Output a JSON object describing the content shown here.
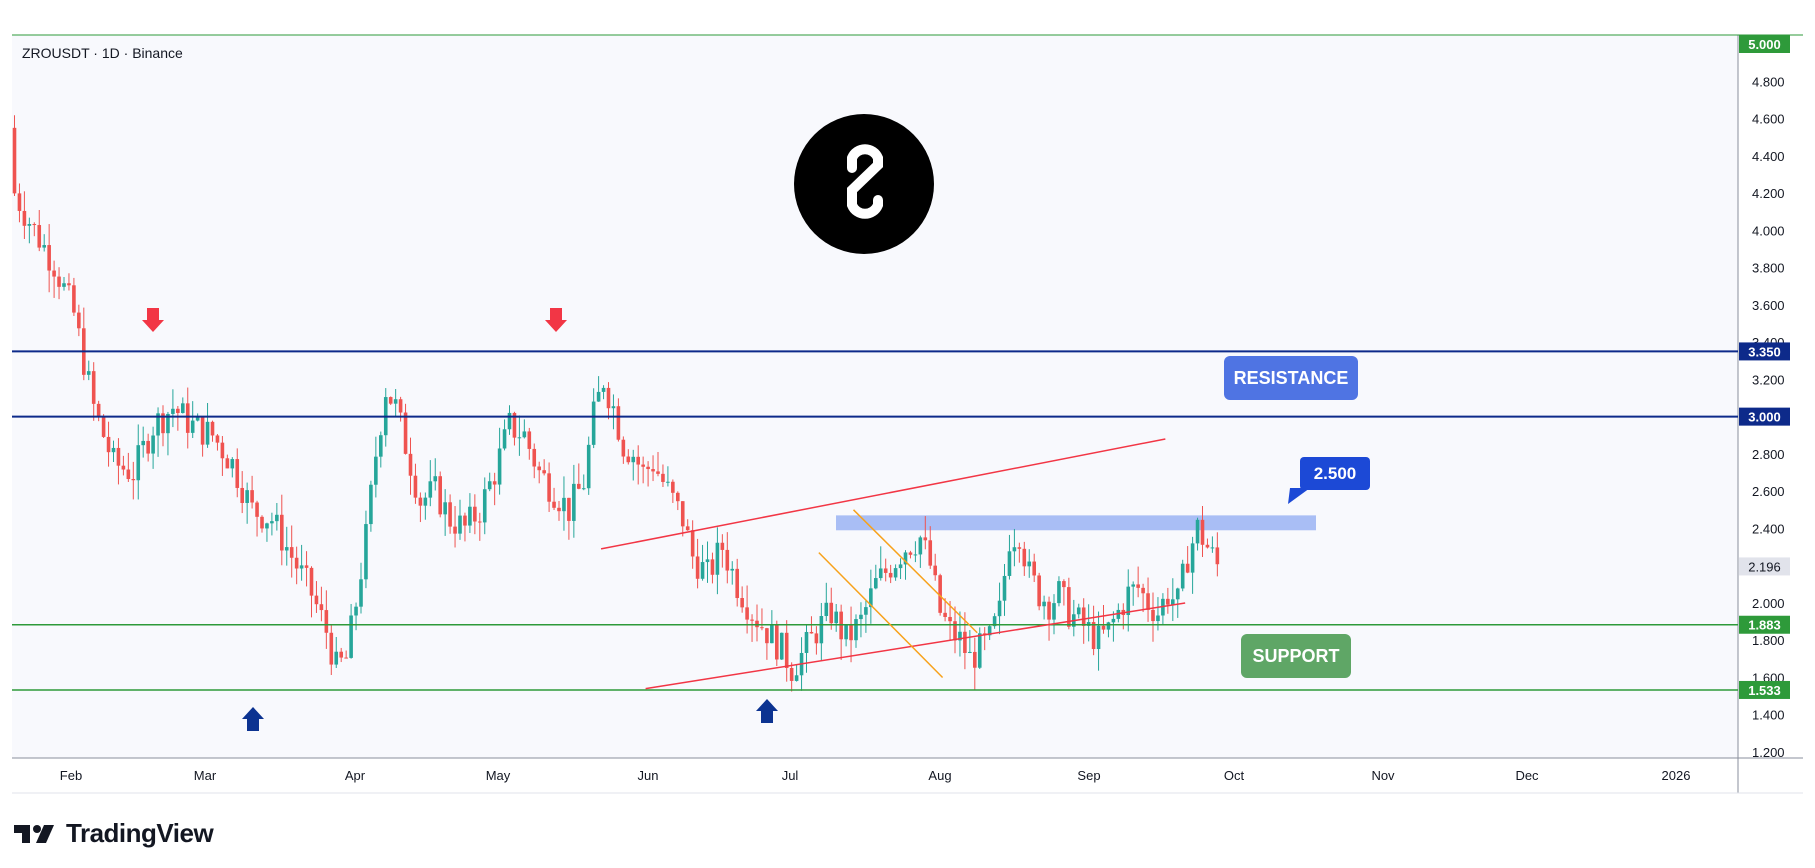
{
  "header": {
    "symbol_line": "ZROUSDT · 1D · Binance"
  },
  "brand": {
    "name": "TradingView",
    "logo_icon": "tradingview-logo-icon",
    "coin_icon": "layerzero-logo-icon"
  },
  "colors": {
    "up": "#26a69a",
    "down": "#ef5350",
    "resistance": "#0d2a8a",
    "support": "#2e9a3a",
    "channel": "#f23645",
    "wedge": "#f7a21b",
    "zone": "#8fa9f2",
    "resistance_box": "#4f74e3",
    "support_box": "#5fa666",
    "arrow_red": "#f23645",
    "arrow_blue": "#0c3391",
    "target_badge": "#1c49d6"
  },
  "chart_data": {
    "type": "candlestick",
    "title": "ZROUSDT · 1D · Binance",
    "ylim": [
      1.2,
      5.0
    ],
    "y_ticks": [
      "5.000",
      "4.800",
      "4.600",
      "4.400",
      "4.200",
      "4.000",
      "3.800",
      "3.600",
      "3.400",
      "3.200",
      "3.000",
      "2.800",
      "2.600",
      "2.400",
      "2.200",
      "2.000",
      "1.800",
      "1.600",
      "1.400",
      "1.200"
    ],
    "x_ticks": [
      "Feb",
      "Mar",
      "Apr",
      "May",
      "Jun",
      "Jul",
      "Aug",
      "Sep",
      "Oct",
      "Nov",
      "Dec",
      "2026"
    ],
    "price_badges": [
      {
        "value": "5.000",
        "style": "support"
      },
      {
        "value": "3.350",
        "style": "resistance"
      },
      {
        "value": "3.000",
        "style": "resistance"
      },
      {
        "value": "2.196",
        "style": "current"
      },
      {
        "value": "1.883",
        "style": "support"
      },
      {
        "value": "1.533",
        "style": "support"
      }
    ],
    "levels": {
      "resistance": [
        3.35,
        3.0
      ],
      "support": [
        1.883,
        1.533
      ]
    },
    "annotations": {
      "resistance_label": "RESISTANCE",
      "support_label": "SUPPORT",
      "target_label": "2.500",
      "target_zone": [
        2.39,
        2.47
      ]
    },
    "close_path": [
      [
        0,
        4.2
      ],
      [
        4,
        4.0
      ],
      [
        8,
        3.82
      ],
      [
        12,
        3.55
      ],
      [
        16,
        3.05
      ],
      [
        20,
        2.75
      ],
      [
        24,
        2.7
      ],
      [
        28,
        2.95
      ],
      [
        32,
        3.05
      ],
      [
        36,
        2.95
      ],
      [
        40,
        2.9
      ],
      [
        44,
        2.75
      ],
      [
        48,
        2.5
      ],
      [
        52,
        2.45
      ],
      [
        56,
        2.25
      ],
      [
        60,
        2.05
      ],
      [
        63,
        1.85
      ],
      [
        65,
        1.65
      ],
      [
        67,
        1.7
      ],
      [
        69,
        2.0
      ],
      [
        71,
        2.35
      ],
      [
        73,
        2.8
      ],
      [
        75,
        3.15
      ],
      [
        77,
        3.05
      ],
      [
        79,
        2.85
      ],
      [
        82,
        2.55
      ],
      [
        85,
        2.6
      ],
      [
        88,
        2.45
      ],
      [
        91,
        2.4
      ],
      [
        94,
        2.5
      ],
      [
        97,
        2.7
      ],
      [
        100,
        2.95
      ],
      [
        103,
        2.9
      ],
      [
        106,
        2.7
      ],
      [
        109,
        2.6
      ],
      [
        112,
        2.5
      ],
      [
        115,
        2.65
      ],
      [
        117,
        3.0
      ],
      [
        119,
        3.2
      ],
      [
        121,
        3.05
      ],
      [
        123,
        2.85
      ],
      [
        125,
        2.8
      ],
      [
        127,
        2.7
      ],
      [
        129,
        2.75
      ],
      [
        131,
        2.65
      ],
      [
        133,
        2.55
      ],
      [
        135,
        2.45
      ],
      [
        137,
        2.25
      ],
      [
        140,
        2.15
      ],
      [
        143,
        2.3
      ],
      [
        146,
        2.1
      ],
      [
        149,
        1.95
      ],
      [
        152,
        1.85
      ],
      [
        155,
        1.75
      ],
      [
        157,
        1.65
      ],
      [
        159,
        1.72
      ],
      [
        162,
        1.85
      ],
      [
        165,
        1.95
      ],
      [
        168,
        1.8
      ],
      [
        171,
        1.9
      ],
      [
        174,
        2.1
      ],
      [
        177,
        2.2
      ],
      [
        180,
        2.3
      ],
      [
        183,
        2.35
      ],
      [
        185,
        2.2
      ],
      [
        187,
        1.95
      ],
      [
        189,
        1.85
      ],
      [
        191,
        1.8
      ],
      [
        193,
        1.7
      ],
      [
        195,
        1.75
      ],
      [
        197,
        1.8
      ],
      [
        199,
        1.95
      ],
      [
        201,
        2.35
      ],
      [
        203,
        2.38
      ],
      [
        205,
        2.15
      ],
      [
        207,
        2.05
      ],
      [
        209,
        2.0
      ],
      [
        211,
        2.05
      ],
      [
        213,
        1.95
      ],
      [
        215,
        1.9
      ],
      [
        217,
        1.85
      ],
      [
        219,
        1.8
      ],
      [
        221,
        1.85
      ],
      [
        223,
        1.95
      ],
      [
        225,
        2.05
      ],
      [
        227,
        2.08
      ],
      [
        229,
        2.0
      ],
      [
        231,
        1.95
      ],
      [
        233,
        2.05
      ],
      [
        235,
        2.0
      ],
      [
        237,
        2.25
      ],
      [
        239,
        2.4
      ],
      [
        241,
        2.3
      ],
      [
        243,
        2.2
      ]
    ]
  }
}
